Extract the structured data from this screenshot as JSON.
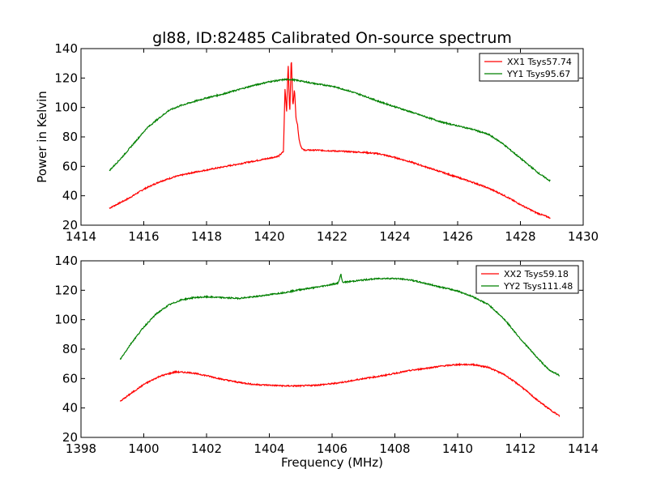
{
  "figure": {
    "title": "gl88, ID:82485 Calibrated On-source spectrum",
    "ylabel": "Power in Kelvin",
    "xlabel": "Frequency (MHz)"
  },
  "chart_data": [
    {
      "type": "line",
      "title": "gl88, ID:82485 Calibrated On-source spectrum",
      "xlabel": "",
      "ylabel": "Power in Kelvin",
      "xlim": [
        1414,
        1430
      ],
      "ylim": [
        20,
        140
      ],
      "xticks": [
        1414,
        1416,
        1418,
        1420,
        1422,
        1424,
        1426,
        1428,
        1430
      ],
      "yticks": [
        20,
        40,
        60,
        80,
        100,
        120,
        140
      ],
      "legend_position": "top-right",
      "grid": false,
      "series": [
        {
          "name": "XX1 Tsys57.74",
          "color": "#ff0000",
          "x": [
            1414.9,
            1415.5,
            1416.0,
            1416.5,
            1417.0,
            1417.5,
            1418.0,
            1418.5,
            1419.0,
            1419.5,
            1420.0,
            1420.3,
            1420.45,
            1420.5,
            1420.55,
            1420.6,
            1420.65,
            1420.7,
            1420.75,
            1420.8,
            1420.85,
            1420.9,
            1420.95,
            1421.0,
            1421.05,
            1421.1,
            1421.2,
            1421.5,
            1422.0,
            1422.5,
            1423.0,
            1423.5,
            1424.0,
            1424.5,
            1425.0,
            1425.5,
            1426.0,
            1426.5,
            1427.0,
            1427.5,
            1428.0,
            1428.5,
            1428.95
          ],
          "y": [
            31.5,
            38,
            44.5,
            49.5,
            53,
            55.5,
            57.5,
            59.5,
            61.5,
            63.5,
            65.5,
            67,
            70,
            113,
            97,
            130,
            95,
            135,
            100,
            113,
            93,
            88,
            78,
            74,
            72,
            71,
            71,
            71,
            70.5,
            70,
            69.5,
            68.5,
            66,
            63,
            59.5,
            56,
            52.5,
            49,
            45,
            40,
            34,
            28.5,
            25
          ]
        },
        {
          "name": "YY1 Tsys95.67",
          "color": "#008000",
          "x": [
            1414.9,
            1415.3,
            1415.7,
            1416.1,
            1416.5,
            1416.8,
            1417.2,
            1417.6,
            1418.0,
            1418.5,
            1419.0,
            1419.5,
            1420.0,
            1420.5,
            1420.7,
            1421.0,
            1421.5,
            1422.0,
            1422.5,
            1423.0,
            1423.5,
            1424.0,
            1424.5,
            1425.0,
            1425.5,
            1426.0,
            1426.5,
            1427.0,
            1427.4,
            1427.8,
            1428.2,
            1428.6,
            1428.95
          ],
          "y": [
            57,
            66,
            76,
            86,
            93,
            98,
            101.5,
            104,
            106.5,
            109,
            112,
            115,
            117.5,
            119,
            119,
            118,
            116,
            114.5,
            111.5,
            108,
            104,
            100.5,
            97,
            93.5,
            90,
            87.5,
            85,
            81.5,
            76,
            69,
            62,
            55,
            50
          ]
        }
      ]
    },
    {
      "type": "line",
      "title": "",
      "xlabel": "Frequency (MHz)",
      "ylabel": "",
      "xlim": [
        1398,
        1414
      ],
      "ylim": [
        20,
        140
      ],
      "xticks": [
        1398,
        1400,
        1402,
        1404,
        1406,
        1408,
        1410,
        1412,
        1414
      ],
      "yticks": [
        20,
        40,
        60,
        80,
        100,
        120,
        140
      ],
      "legend_position": "top-right",
      "grid": false,
      "series": [
        {
          "name": "XX2 Tsys59.18",
          "color": "#ff0000",
          "x": [
            1399.25,
            1399.6,
            1400.0,
            1400.5,
            1401.0,
            1401.5,
            1402.0,
            1402.5,
            1403.0,
            1403.5,
            1404.0,
            1404.5,
            1405.0,
            1405.5,
            1406.0,
            1406.5,
            1407.0,
            1407.5,
            1408.0,
            1408.5,
            1409.0,
            1409.5,
            1410.0,
            1410.5,
            1411.0,
            1411.5,
            1412.0,
            1412.5,
            1412.9,
            1413.25
          ],
          "y": [
            44.5,
            50,
            56,
            61.5,
            64.5,
            64,
            62,
            59.5,
            57.5,
            56,
            55.5,
            55,
            55,
            55.5,
            56.5,
            58,
            60,
            61.5,
            63.5,
            65.5,
            67,
            68.5,
            69.5,
            69.5,
            67.5,
            62.5,
            55,
            46,
            39.5,
            34.5
          ]
        },
        {
          "name": "YY2 Tsys111.48",
          "color": "#008000",
          "x": [
            1399.25,
            1399.6,
            1400.0,
            1400.4,
            1400.8,
            1401.2,
            1401.6,
            1402.0,
            1402.5,
            1403.0,
            1403.5,
            1404.0,
            1404.5,
            1405.0,
            1405.5,
            1406.0,
            1406.2,
            1406.28,
            1406.33,
            1406.4,
            1406.6,
            1407.0,
            1407.5,
            1408.0,
            1408.5,
            1409.0,
            1409.5,
            1410.0,
            1410.5,
            1411.0,
            1411.5,
            1412.0,
            1412.5,
            1412.9,
            1413.25
          ],
          "y": [
            73,
            84,
            95,
            104,
            110,
            113.5,
            115,
            115.5,
            115,
            114.5,
            115.5,
            117,
            118.5,
            120.5,
            122,
            124,
            125,
            131,
            125.5,
            125.5,
            126,
            127,
            128,
            128,
            127,
            124.5,
            122,
            119.5,
            115.5,
            110,
            100,
            87,
            75,
            66,
            62
          ]
        }
      ]
    }
  ]
}
